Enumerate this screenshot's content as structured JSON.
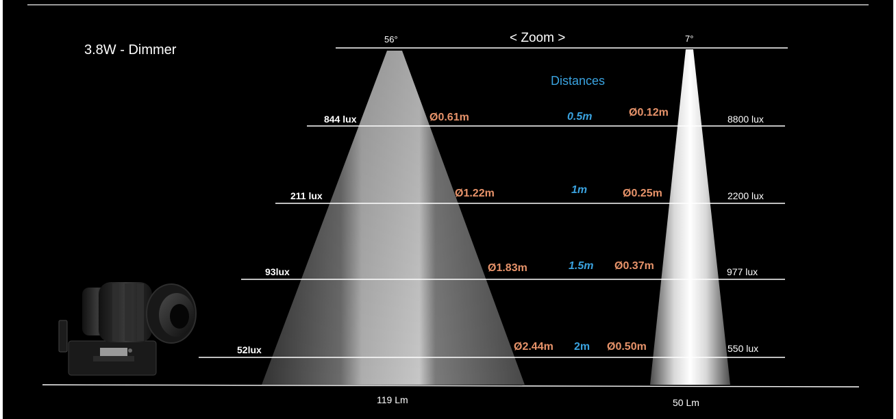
{
  "title": "3.8W - Dimmer",
  "zoom_label": "< Zoom >",
  "wide_angle": "56°",
  "narrow_angle": "7°",
  "distances_heading": "Distances",
  "rows": [
    {
      "distance": "0.5m",
      "wide_lux": "844 lux",
      "wide_diameter": "Ø0.61m",
      "narrow_diameter": "Ø0.12m",
      "narrow_lux": "8800 lux"
    },
    {
      "distance": "1m",
      "wide_lux": "211 lux",
      "wide_diameter": "Ø1.22m",
      "narrow_diameter": "Ø0.25m",
      "narrow_lux": "2200 lux"
    },
    {
      "distance": "1.5m",
      "wide_lux": "93lux",
      "wide_diameter": "Ø1.83m",
      "narrow_diameter": "Ø0.37m",
      "narrow_lux": "977 lux"
    },
    {
      "distance": "2m",
      "wide_lux": "52lux",
      "wide_diameter": "Ø2.44m",
      "narrow_diameter": "Ø0.50m",
      "narrow_lux": "550 lux"
    }
  ],
  "wide_lumens": "119 Lm",
  "narrow_lumens": "50 Lm",
  "colors": {
    "background": "#000000",
    "distance_text": "#3aa3e0",
    "diameter_text": "#e7936a",
    "lines": "#ffffff"
  },
  "icons": {
    "fixture": "spotlight-fixture-icon"
  }
}
